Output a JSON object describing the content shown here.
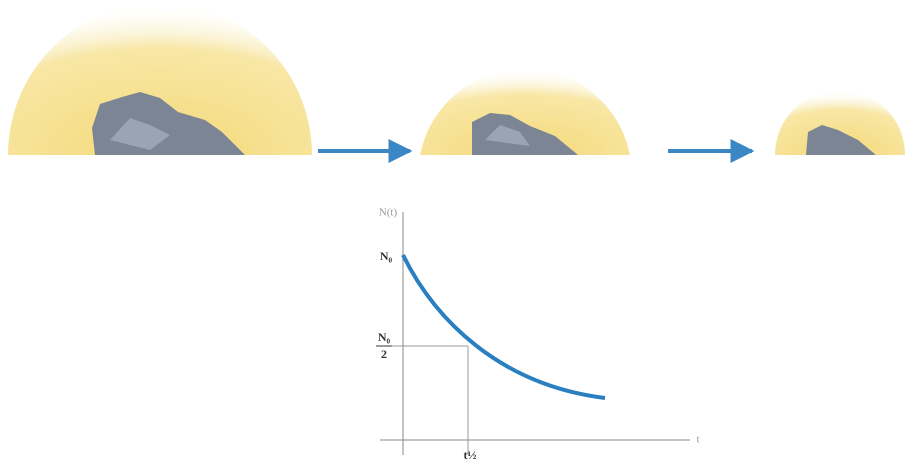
{
  "graph": {
    "y_axis_label": "N(t)",
    "x_axis_label": "t",
    "initial_label": "N₀",
    "half_numerator": "N₀",
    "half_denominator": "2",
    "half_life_label": "t½"
  }
}
